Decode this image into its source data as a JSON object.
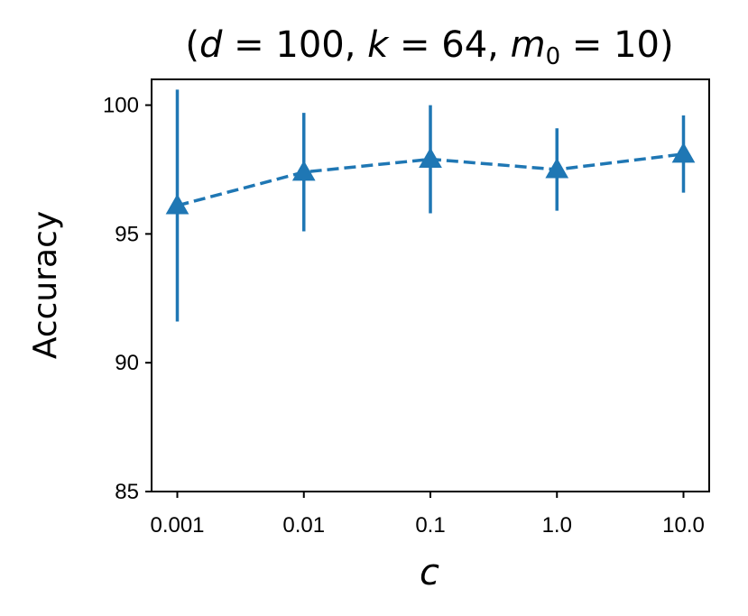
{
  "chart_data": {
    "type": "line",
    "title": "(d = 100, k = 64, m0 = 10)",
    "title_parts": {
      "open": "(",
      "d_sym": "d",
      "d_eq": " = 100, ",
      "k_sym": "k",
      "k_eq": " = 64, ",
      "m_sym": "m",
      "m_sub": "0",
      "m_eq": " = 10)"
    },
    "xlabel": "c",
    "ylabel": "Accuracy",
    "categories": [
      "0.001",
      "0.01",
      "0.1",
      "1.0",
      "10.0"
    ],
    "yticks": [
      85,
      90,
      95,
      100
    ],
    "ylim": [
      85,
      101
    ],
    "grid": false,
    "series": [
      {
        "values": [
          96.1,
          97.4,
          97.9,
          97.5,
          98.1
        ],
        "errors": [
          4.5,
          2.3,
          2.1,
          1.6,
          1.5
        ],
        "marker": "triangle-up",
        "line_style": "dashed",
        "color": "#1f77b4"
      }
    ]
  }
}
